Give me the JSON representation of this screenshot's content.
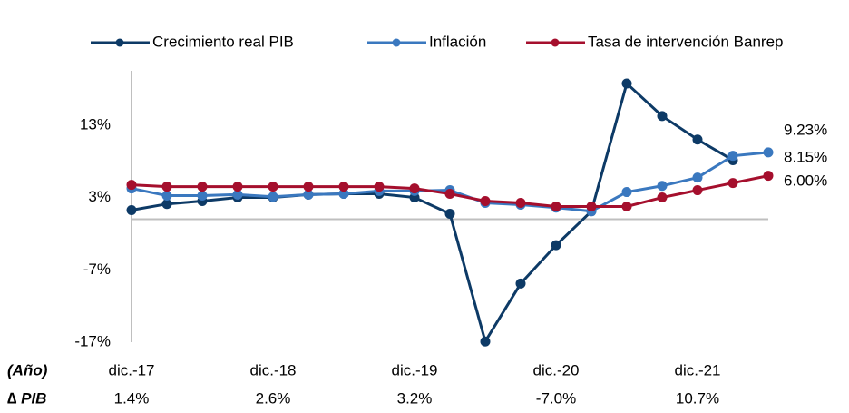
{
  "chart_data": {
    "type": "line",
    "categories": [
      "dic.-17",
      null,
      null,
      null,
      "dic.-18",
      null,
      null,
      null,
      "dic.-19",
      null,
      null,
      null,
      "dic.-20",
      null,
      null,
      null,
      "dic.-21",
      null,
      null
    ],
    "series": [
      {
        "name": "Crecimiento real PIB",
        "color": "#0d3a66",
        "end_label": "8.15%",
        "values": [
          1.25,
          2.1,
          2.5,
          3.0,
          3.0,
          3.4,
          3.5,
          3.5,
          3.0,
          0.75,
          -16.9,
          -8.9,
          -3.6,
          1.1,
          18.75,
          14.25,
          11.0,
          8.15,
          null
        ]
      },
      {
        "name": "Inflación",
        "color": "#3a78bf",
        "end_label": "9.23%",
        "values": [
          4.25,
          3.25,
          3.25,
          3.4,
          3.1,
          3.4,
          3.5,
          3.9,
          3.9,
          4.0,
          2.25,
          2.0,
          1.6,
          1.1,
          3.75,
          4.6,
          5.75,
          8.75,
          9.23
        ]
      },
      {
        "name": "Tasa de intervención Banrep",
        "color": "#a50f2d",
        "end_label": "6.00%",
        "values": [
          4.75,
          4.5,
          4.5,
          4.5,
          4.5,
          4.5,
          4.5,
          4.5,
          4.25,
          3.5,
          2.5,
          2.25,
          1.75,
          1.75,
          1.75,
          3.0,
          4.0,
          5.0,
          6.0
        ]
      }
    ],
    "ylim": [
      -17,
      20.5
    ],
    "yticks": [
      {
        "value": 13,
        "label": "13%"
      },
      {
        "value": 3,
        "label": "3%"
      },
      {
        "value": -7,
        "label": "-7%"
      },
      {
        "value": -17,
        "label": "-17%"
      }
    ],
    "row_title": "(Año)",
    "pib_row": {
      "title": "∆ PIB",
      "labels": [
        "1.4%",
        "2.6%",
        "3.2%",
        "-7.0%",
        "10.7%"
      ]
    }
  }
}
